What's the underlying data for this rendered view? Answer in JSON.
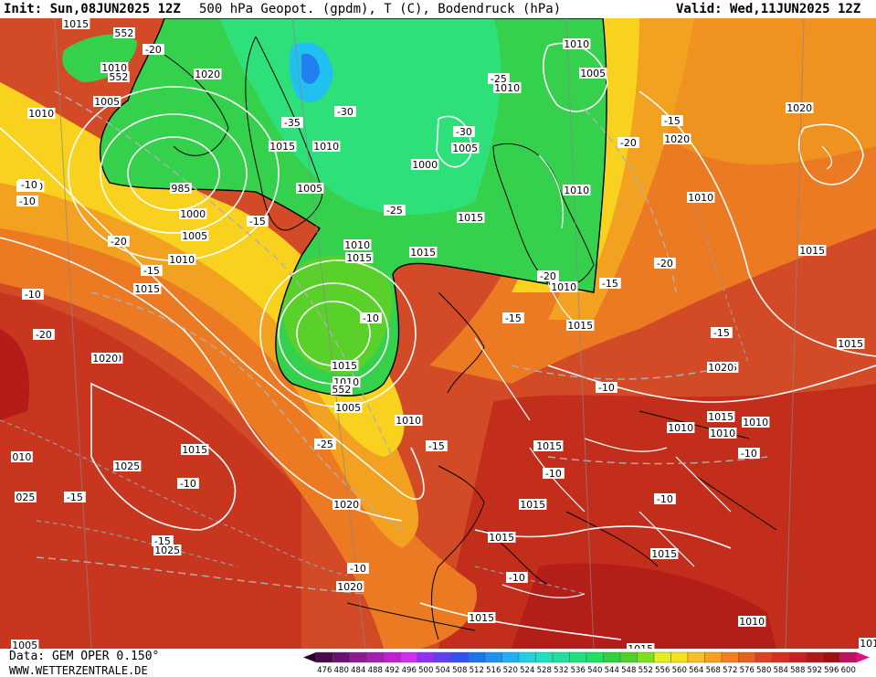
{
  "header": {
    "init": "Init: Sun,08JUN2025 12Z",
    "title": "500 hPa Geopot. (gpdm), T (C), Bodendruck (hPa)",
    "valid": "Valid: Wed,11JUN2025 12Z"
  },
  "footer": {
    "data_source": "Data: GEM OPER 0.150°",
    "website": "WWW.WETTERZENTRALE.DE"
  },
  "legend": {
    "values": [
      "476",
      "480",
      "484",
      "488",
      "492",
      "496",
      "500",
      "504",
      "508",
      "512",
      "516",
      "520",
      "524",
      "528",
      "532",
      "536",
      "540",
      "544",
      "548",
      "552",
      "556",
      "560",
      "564",
      "568",
      "572",
      "576",
      "580",
      "584",
      "588",
      "592",
      "596",
      "600"
    ],
    "colors": [
      "#4a0a4a",
      "#6a1070",
      "#8a1a90",
      "#a020b0",
      "#c020d0",
      "#d030f0",
      "#9030f0",
      "#6040f0",
      "#3050f0",
      "#2070f0",
      "#2090f0",
      "#20b0f0",
      "#20d0e0",
      "#20e0c0",
      "#20e0a0",
      "#20e080",
      "#20e060",
      "#30d040",
      "#50d030",
      "#80e020",
      "#e0f020",
      "#f8e020",
      "#f8c020",
      "#f8a020",
      "#f08020",
      "#e86020",
      "#e04020",
      "#d83020",
      "#c82020",
      "#b01818",
      "#a01010",
      "#c01060"
    ]
  },
  "pressure_labels": [
    "1015",
    "552",
    "1010",
    "552",
    "1020",
    "1005",
    "1010",
    "985",
    "1000",
    "1005",
    "1010",
    "1015",
    "1020",
    "1025",
    "1025",
    "1020",
    "1015",
    "1020",
    "1015",
    "1010",
    "1010",
    "1005",
    "1010",
    "1005",
    "1000",
    "1005",
    "1010",
    "1015",
    "1010",
    "1015",
    "1015",
    "1010",
    "1005",
    "1015",
    "1010",
    "1015",
    "1020",
    "1010",
    "1015",
    "1020",
    "1015",
    "1015",
    "1010",
    "1015",
    "1015",
    "1015",
    "1015",
    "1015",
    "1015",
    "1010",
    "1010",
    "1015",
    "1010",
    "1010",
    "1005",
    "1015",
    "1010",
    "1020",
    "552",
    "010",
    "025",
    "1020",
    "1015"
  ],
  "temperature_labels": [
    "-20",
    "-35",
    "-30",
    "-25",
    "-30",
    "-15",
    "-20",
    "-25",
    "-15",
    "-20",
    "-15",
    "-15",
    "-10",
    "-20",
    "-20",
    "-15",
    "-25",
    "-15",
    "-15",
    "-10",
    "-10",
    "-15",
    "-15",
    "-10",
    "-10",
    "-10",
    "-10",
    "-10",
    "-10",
    "-10",
    "-10",
    "-20"
  ]
}
